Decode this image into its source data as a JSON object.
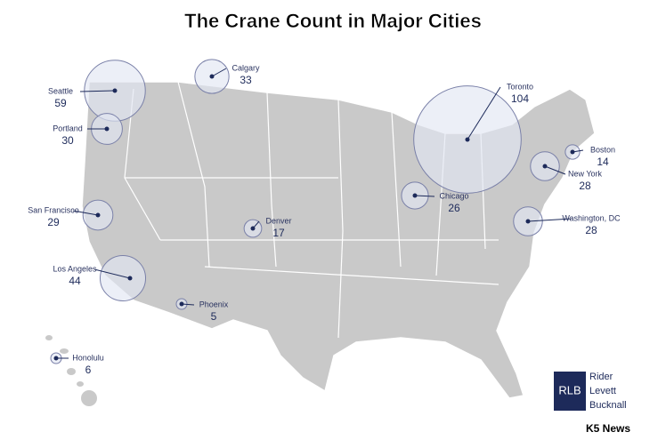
{
  "title": "The Crane Count in Major Cities",
  "cities": [
    {
      "name": "Seattle",
      "value": 59
    },
    {
      "name": "Portland",
      "value": 30
    },
    {
      "name": "San Francisco",
      "value": 29
    },
    {
      "name": "Los Angeles",
      "value": 44
    },
    {
      "name": "Phoenix",
      "value": 5
    },
    {
      "name": "Honolulu",
      "value": 6
    },
    {
      "name": "Calgary",
      "value": 33
    },
    {
      "name": "Denver",
      "value": 17
    },
    {
      "name": "Chicago",
      "value": 26
    },
    {
      "name": "Toronto",
      "value": 104
    },
    {
      "name": "Boston",
      "value": 14
    },
    {
      "name": "New York",
      "value": 28
    },
    {
      "name": "Washington, DC",
      "value": 28
    }
  ],
  "logo": {
    "mark": "RLB",
    "lines": [
      "Rider",
      "Levett",
      "Bucknall"
    ]
  },
  "source": "K5 News"
}
